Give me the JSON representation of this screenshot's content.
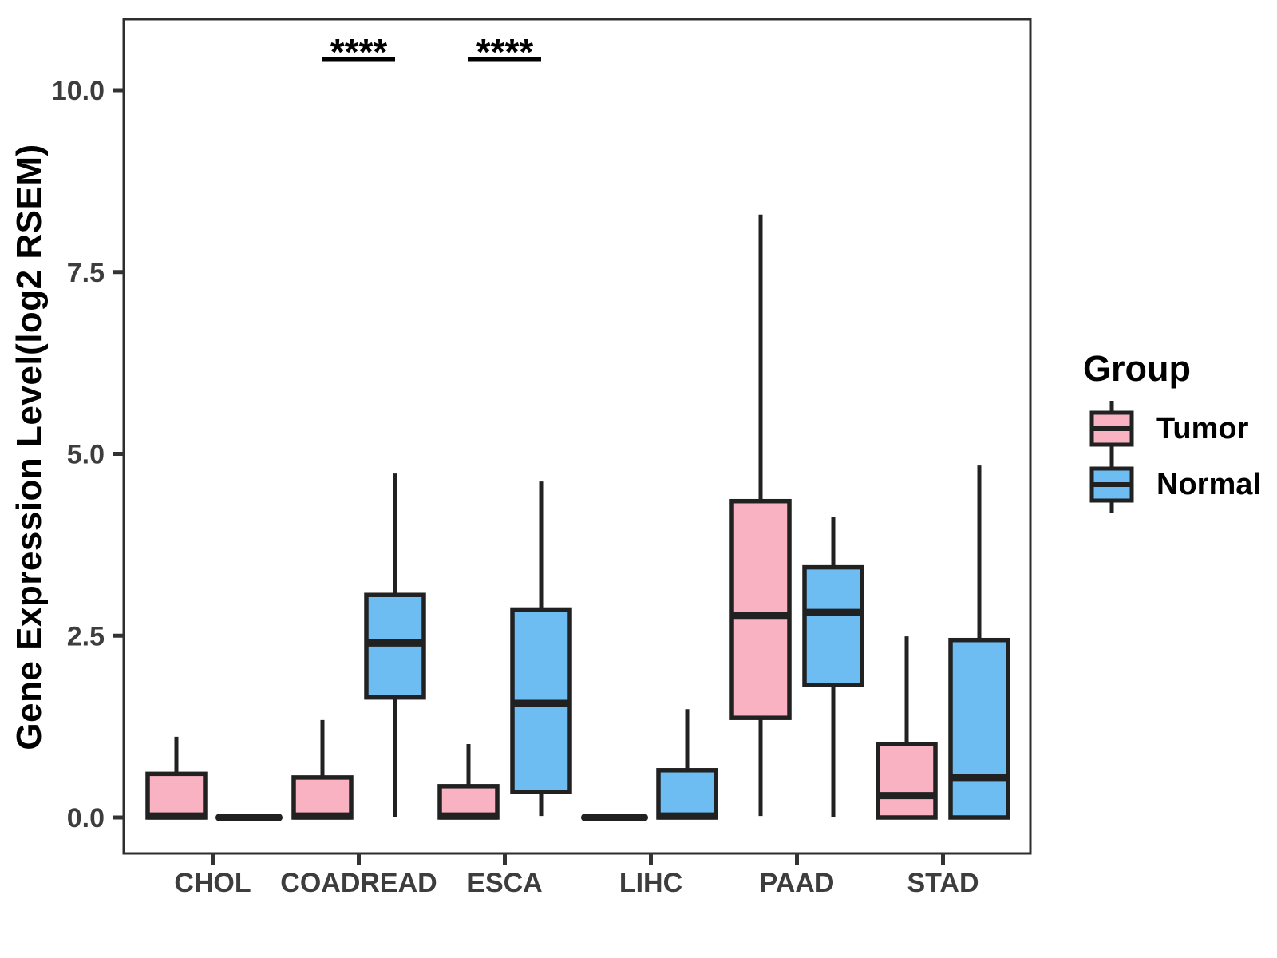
{
  "chart_data": {
    "type": "boxplot",
    "title": "",
    "xlabel": "",
    "ylabel": "Gene Expression Level(log2 RSEM)",
    "categories": [
      "CHOL",
      "COADREAD",
      "ESCA",
      "LIHC",
      "PAAD",
      "STAD"
    ],
    "y_ticks": [
      0.0,
      2.5,
      5.0,
      7.5,
      10.0
    ],
    "y_tick_labels": [
      "0.0",
      "2.5",
      "5.0",
      "7.5",
      "10.0"
    ],
    "ylim": [
      -0.5,
      11.0
    ],
    "grid": false,
    "legend": {
      "title": "Group",
      "position": "right",
      "items": [
        {
          "label": "Tumor",
          "color": "#F9B2C2"
        },
        {
          "label": "Normal",
          "color": "#6DBDF2"
        }
      ]
    },
    "series": [
      {
        "name": "Tumor",
        "color": "#F9B2C2",
        "boxes": [
          {
            "whisker_low": 0,
            "q1": 0,
            "median": 0.02,
            "q3": 0.6,
            "whisker_high": 1.11
          },
          {
            "whisker_low": 0,
            "q1": 0,
            "median": 0.02,
            "q3": 0.55,
            "whisker_high": 1.34
          },
          {
            "whisker_low": 0,
            "q1": 0,
            "median": 0.02,
            "q3": 0.43,
            "whisker_high": 1.01
          },
          {
            "flat": true,
            "whisker_low": 0,
            "q1": 0,
            "median": 0,
            "q3": 0,
            "whisker_high": 0
          },
          {
            "whisker_low": 0.02,
            "q1": 1.37,
            "median": 2.78,
            "q3": 4.35,
            "whisker_high": 8.29
          },
          {
            "whisker_low": 0,
            "q1": 0,
            "median": 0.3,
            "q3": 1.01,
            "whisker_high": 2.49
          }
        ]
      },
      {
        "name": "Normal",
        "color": "#6DBDF2",
        "boxes": [
          {
            "flat": true,
            "whisker_low": 0,
            "q1": 0,
            "median": 0,
            "q3": 0,
            "whisker_high": 0
          },
          {
            "whisker_low": 0.01,
            "q1": 1.65,
            "median": 2.4,
            "q3": 3.06,
            "whisker_high": 4.73
          },
          {
            "whisker_low": 0.02,
            "q1": 0.35,
            "median": 1.57,
            "q3": 2.86,
            "whisker_high": 4.62
          },
          {
            "whisker_low": 0,
            "q1": 0,
            "median": 0.02,
            "q3": 0.65,
            "whisker_high": 1.49
          },
          {
            "whisker_low": 0.01,
            "q1": 1.82,
            "median": 2.82,
            "q3": 3.44,
            "whisker_high": 4.13
          },
          {
            "whisker_low": 0,
            "q1": 0,
            "median": 0.55,
            "q3": 2.44,
            "whisker_high": 4.84
          }
        ]
      }
    ],
    "significance": [
      {
        "category": "COADREAD",
        "label": "****"
      },
      {
        "category": "ESCA",
        "label": "****"
      }
    ],
    "colors": {
      "box_border": "#212121",
      "axis_text": "#3d3d3d",
      "tick": "#333333",
      "panel_border": "#2e2e2e"
    }
  }
}
